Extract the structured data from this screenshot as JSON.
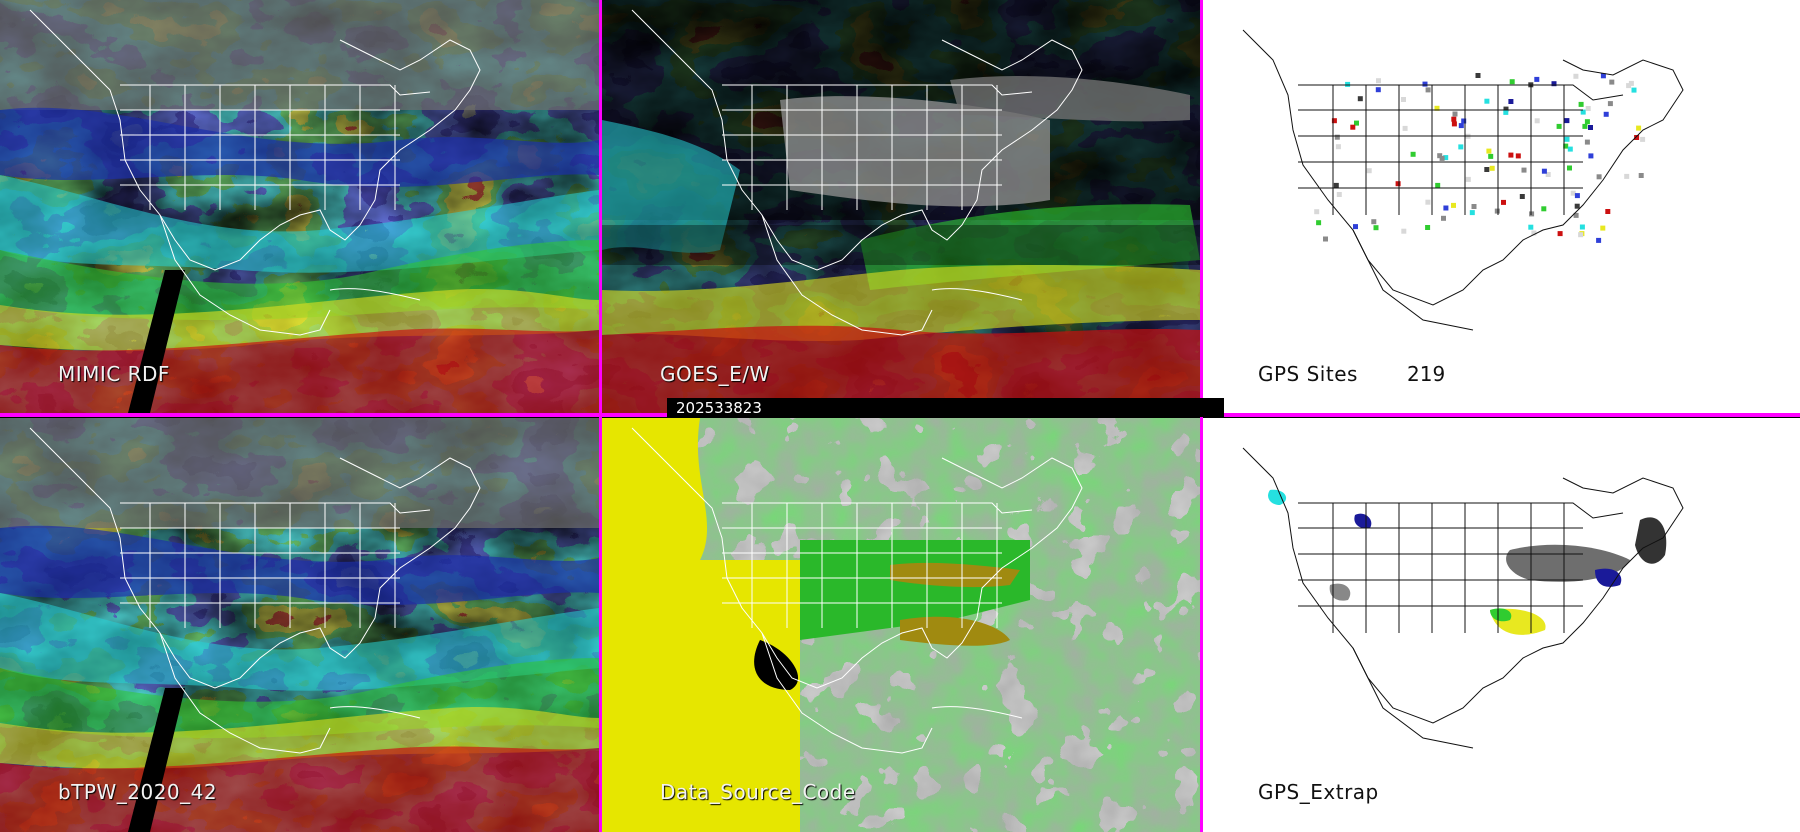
{
  "panels": {
    "mimic": {
      "label": "MIMIC RDF"
    },
    "goes": {
      "label": "GOES_E/W"
    },
    "gps_sites": {
      "label": "GPS Sites",
      "count": "219"
    },
    "btpw": {
      "label": "bTPW_2020_42"
    },
    "data_source": {
      "label": "Data_Source_Code"
    },
    "gps_extrap": {
      "label": "GPS_Extrap"
    }
  },
  "timestamp": "202533823",
  "colors": {
    "divider": "#ff00ff",
    "background_map": "#ffffff",
    "pw_scale": [
      "#3a3a3a",
      "#8a8a8a",
      "#d8d8d8",
      "#1a1a99",
      "#2f3fd8",
      "#25e0e0",
      "#30cc30",
      "#e8e820",
      "#cc1010"
    ],
    "data_source_yellow": "#e6e600",
    "data_source_green": "#2ab82a",
    "data_source_gray": "#a9a9a9",
    "data_source_olive": "#a08a10"
  },
  "icons": [
    "state-boundary-lines",
    "coastline"
  ]
}
